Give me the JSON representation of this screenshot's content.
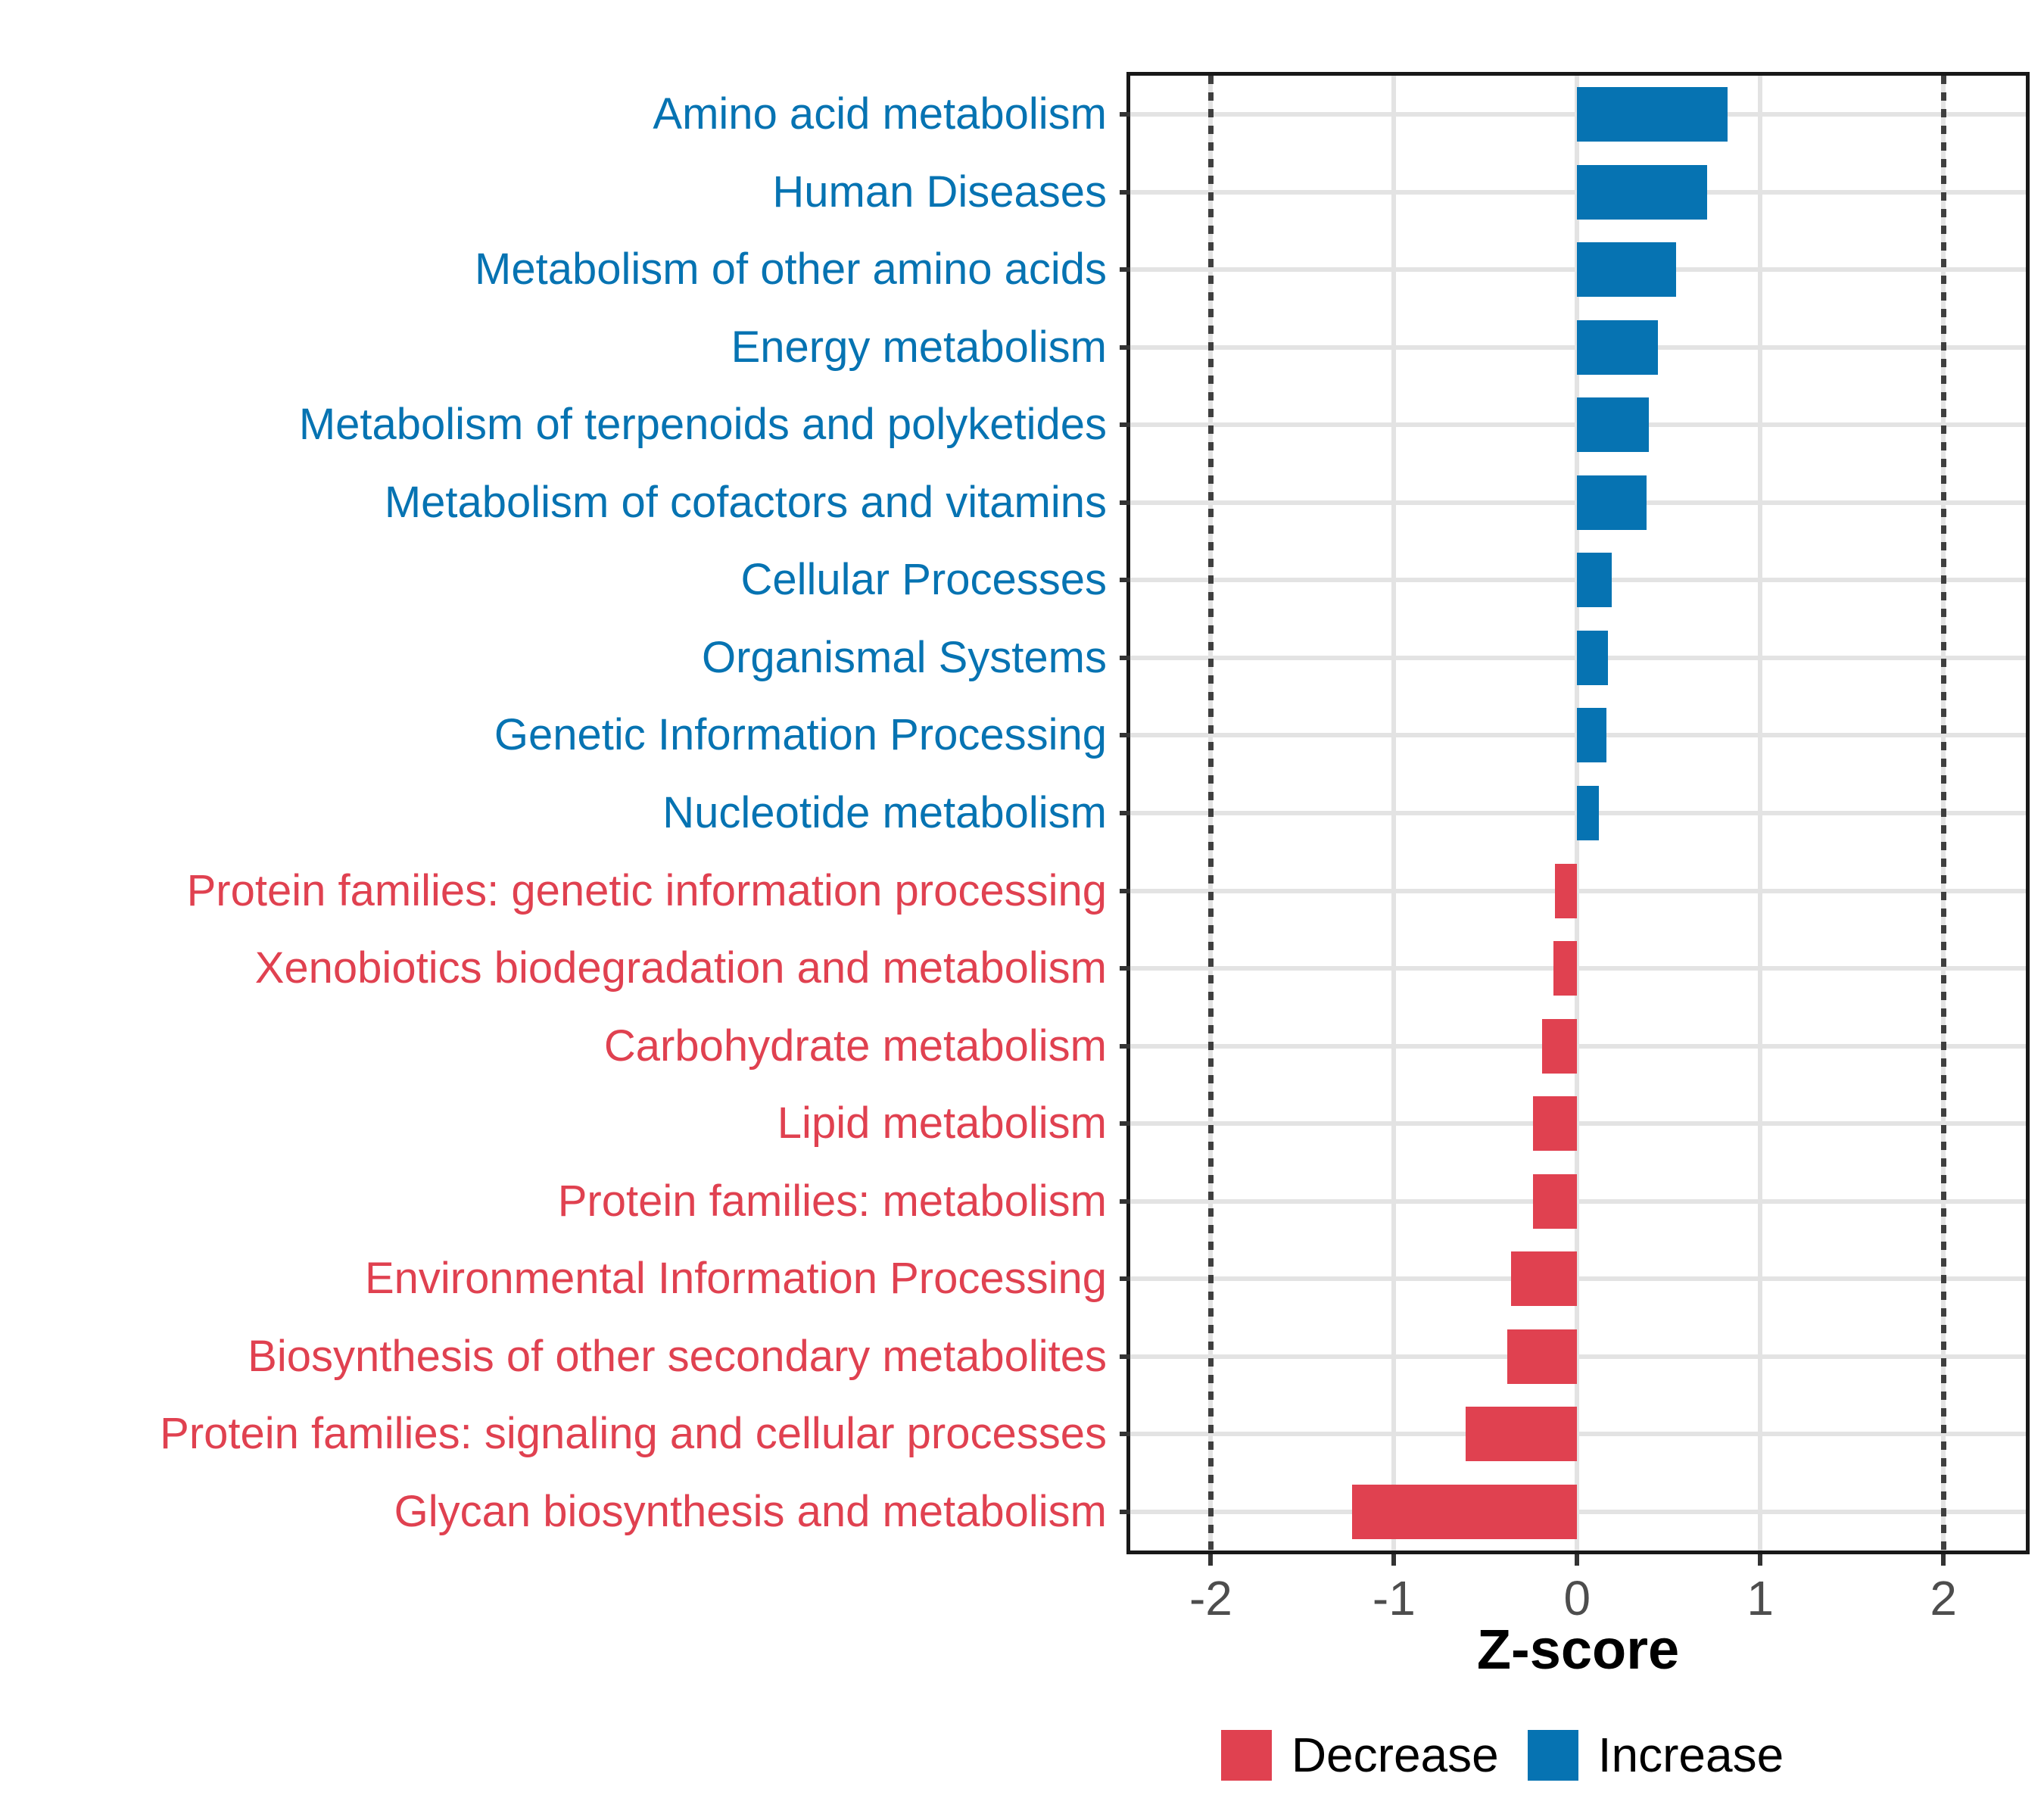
{
  "chart_data": {
    "type": "bar",
    "orientation": "horizontal",
    "title": "",
    "xlabel": "Z-score",
    "ylabel": "",
    "xlim": [
      -2.44,
      2.45
    ],
    "x_ticks": [
      "-2",
      "-1",
      "0",
      "1",
      "2"
    ],
    "x_tick_values": [
      -2,
      -1,
      0,
      1,
      2
    ],
    "threshold_lines": [
      -2,
      2
    ],
    "grid": "major gridlines at integers, light gray",
    "legend_position": "bottom",
    "categories": [
      "Amino acid metabolism",
      "Human Diseases",
      "Metabolism of other amino acids",
      "Energy metabolism",
      "Metabolism of terpenoids and polyketides",
      "Metabolism of cofactors and vitamins",
      "Cellular Processes",
      "Organismal Systems",
      "Genetic Information Processing",
      "Nucleotide metabolism",
      "Protein families: genetic information processing",
      "Xenobiotics biodegradation and metabolism",
      "Carbohydrate metabolism",
      "Lipid metabolism",
      "Protein families: metabolism",
      "Environmental Information Processing",
      "Biosynthesis of other secondary metabolites",
      "Protein families: signaling and cellular processes",
      "Glycan biosynthesis and metabolism"
    ],
    "values": [
      0.82,
      0.71,
      0.54,
      0.44,
      0.39,
      0.38,
      0.19,
      0.17,
      0.16,
      0.12,
      -0.12,
      -0.13,
      -0.19,
      -0.24,
      -0.24,
      -0.36,
      -0.38,
      -0.61,
      -1.23
    ],
    "directions": [
      "Increase",
      "Increase",
      "Increase",
      "Increase",
      "Increase",
      "Increase",
      "Increase",
      "Increase",
      "Increase",
      "Increase",
      "Decrease",
      "Decrease",
      "Decrease",
      "Decrease",
      "Decrease",
      "Decrease",
      "Decrease",
      "Decrease",
      "Decrease"
    ],
    "colors": {
      "Increase": "#0673B2",
      "Decrease": "#E04150"
    }
  },
  "legend": {
    "items": [
      {
        "label": "Decrease",
        "color": "#E04150"
      },
      {
        "label": "Increase",
        "color": "#0673B2"
      }
    ]
  }
}
